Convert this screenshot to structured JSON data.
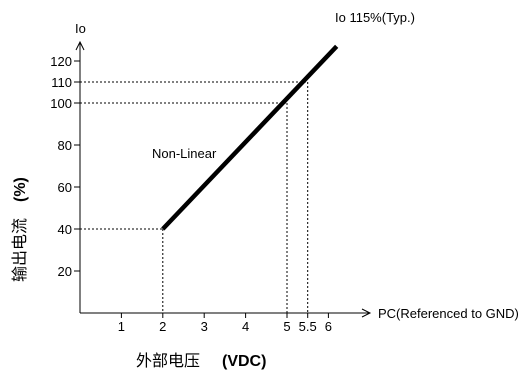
{
  "chart_data": {
    "type": "line",
    "title": "",
    "x_axis_end_label": "PC(Referenced to GND)",
    "y_axis_top_label": "Io",
    "xlabel": "外部电压",
    "xlabel_unit": "(VDC)",
    "ylabel": "输出电流",
    "ylabel_unit": "(%)",
    "xlim": [
      0,
      6.5
    ],
    "ylim": [
      0,
      130
    ],
    "x_ticks": [
      1,
      2,
      3,
      4,
      5,
      5.5,
      6
    ],
    "x_tick_labels": [
      "1",
      "2",
      "3",
      "4",
      "5",
      "5.5",
      "6"
    ],
    "y_ticks": [
      20,
      40,
      60,
      80,
      100,
      110,
      120
    ],
    "y_tick_labels": [
      "20",
      "40",
      "60",
      "80",
      "100",
      "110",
      "120"
    ],
    "grid": false,
    "series": [
      {
        "name": "",
        "x": [
          2,
          6.2
        ],
        "y": [
          40,
          127
        ]
      }
    ],
    "annotations": [
      {
        "text": "Non-Linear"
      },
      {
        "text": "Io 115%(Typ.)"
      }
    ],
    "reference_lines": [
      {
        "x": 2,
        "y": 40
      },
      {
        "x": 5,
        "y": 100
      },
      {
        "x": 5.5,
        "y": 110
      }
    ]
  }
}
